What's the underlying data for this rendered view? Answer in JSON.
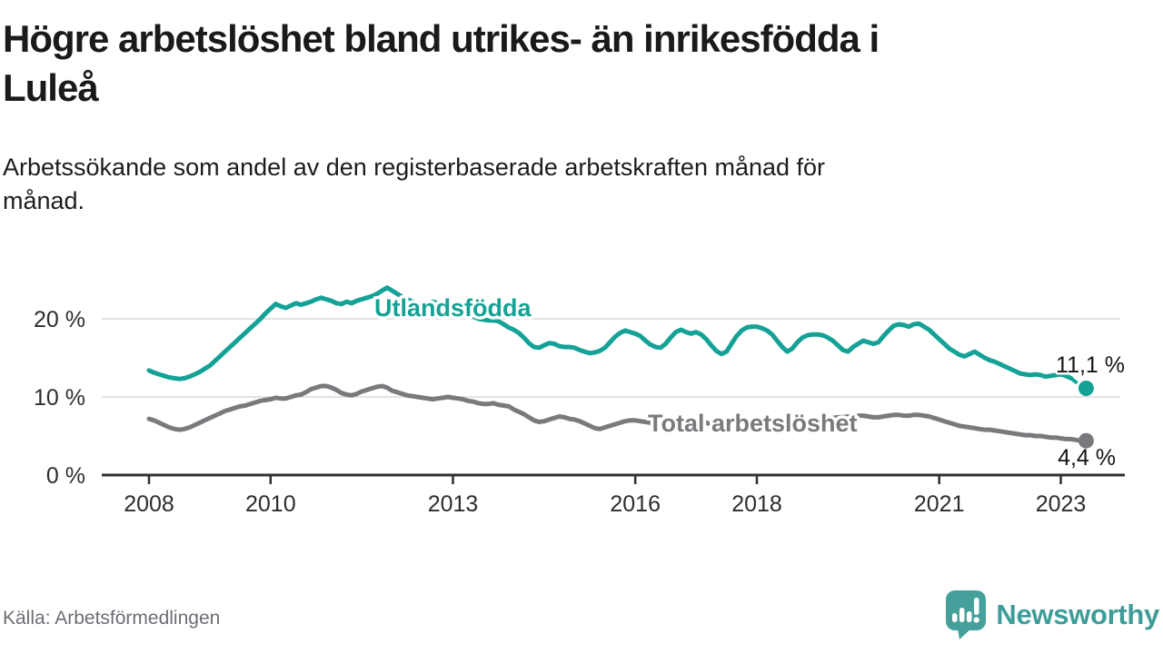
{
  "header": {
    "title": "Högre arbetslöshet bland utrikes- än inrikesfödda i\nLuleå",
    "subtitle": "Arbetssökande som andel av den registerbaserade arbetskraften månad för\nmånad."
  },
  "chart_data": {
    "type": "line",
    "x_start": "2008-01",
    "x_interval": "monthly",
    "xlim": [
      2007.2,
      2024.0
    ],
    "ylim": [
      0,
      26
    ],
    "grid": "horizontal",
    "y_ticks": [
      {
        "value": 20,
        "label": "20 %"
      },
      {
        "value": 10,
        "label": "10 %"
      },
      {
        "value": 0,
        "label": "0 %"
      }
    ],
    "x_ticks": [
      {
        "value": 2008,
        "label": "2008"
      },
      {
        "value": 2010,
        "label": "2010"
      },
      {
        "value": 2013,
        "label": "2013"
      },
      {
        "value": 2016,
        "label": "2016"
      },
      {
        "value": 2018,
        "label": "2018"
      },
      {
        "value": 2021,
        "label": "2021"
      },
      {
        "value": 2023,
        "label": "2023"
      }
    ],
    "series": [
      {
        "name": "Utlandsfödda",
        "color": "#14a296",
        "end_label": "11,1 %",
        "end_value": 11.1,
        "dashed_from_index": 182,
        "values": [
          13.4,
          13.1,
          12.9,
          12.7,
          12.5,
          12.4,
          12.3,
          12.4,
          12.6,
          12.9,
          13.2,
          13.6,
          14.0,
          14.6,
          15.2,
          15.8,
          16.4,
          17.0,
          17.6,
          18.2,
          18.8,
          19.4,
          20.0,
          20.7,
          21.3,
          21.9,
          21.6,
          21.4,
          21.7,
          22.0,
          21.8,
          22.0,
          22.2,
          22.5,
          22.7,
          22.5,
          22.3,
          22.0,
          21.9,
          22.2,
          22.0,
          22.3,
          22.5,
          22.7,
          22.9,
          23.2,
          23.6,
          24.0,
          23.6,
          23.2,
          22.8,
          22.5,
          22.2,
          22.0,
          21.9,
          22.0,
          22.2,
          22.0,
          21.9,
          21.8,
          21.8,
          21.4,
          21.0,
          20.6,
          20.3,
          20.0,
          19.9,
          19.8,
          19.8,
          19.7,
          19.3,
          18.9,
          18.6,
          18.2,
          17.6,
          16.9,
          16.4,
          16.3,
          16.6,
          16.9,
          16.8,
          16.5,
          16.4,
          16.4,
          16.3,
          16.0,
          15.8,
          15.6,
          15.7,
          15.9,
          16.3,
          17.0,
          17.7,
          18.2,
          18.5,
          18.3,
          18.1,
          17.8,
          17.2,
          16.7,
          16.4,
          16.3,
          16.8,
          17.6,
          18.3,
          18.6,
          18.3,
          18.1,
          18.3,
          18.0,
          17.4,
          16.6,
          15.9,
          15.5,
          15.8,
          16.8,
          17.8,
          18.5,
          18.9,
          19.0,
          19.0,
          18.8,
          18.5,
          18.0,
          17.2,
          16.4,
          15.8,
          16.2,
          17.0,
          17.6,
          17.9,
          18.0,
          18.0,
          17.9,
          17.6,
          17.2,
          16.6,
          16.0,
          15.8,
          16.4,
          16.8,
          17.2,
          17.0,
          16.8,
          17.0,
          17.8,
          18.5,
          19.1,
          19.3,
          19.2,
          19.0,
          19.3,
          19.4,
          19.0,
          18.6,
          18.0,
          17.4,
          16.8,
          16.2,
          15.8,
          15.4,
          15.2,
          15.5,
          15.8,
          15.4,
          15.0,
          14.7,
          14.5,
          14.2,
          13.9,
          13.6,
          13.3,
          13.0,
          12.9,
          12.8,
          12.9,
          12.8,
          12.6,
          12.7,
          12.8,
          12.9,
          12.7,
          12.4,
          11.9,
          11.4,
          11.1
        ]
      },
      {
        "name": "Total arbetslöshet",
        "color": "#7a7a7e",
        "end_label": "4,4 %",
        "end_value": 4.4,
        "values": [
          7.2,
          7.0,
          6.7,
          6.4,
          6.1,
          5.9,
          5.8,
          5.9,
          6.1,
          6.4,
          6.7,
          7.0,
          7.3,
          7.6,
          7.9,
          8.2,
          8.4,
          8.6,
          8.8,
          8.9,
          9.1,
          9.3,
          9.5,
          9.6,
          9.7,
          9.9,
          9.8,
          9.8,
          10.0,
          10.2,
          10.3,
          10.6,
          11.0,
          11.2,
          11.4,
          11.4,
          11.2,
          10.9,
          10.5,
          10.3,
          10.2,
          10.4,
          10.7,
          10.9,
          11.1,
          11.3,
          11.4,
          11.2,
          10.8,
          10.6,
          10.4,
          10.2,
          10.1,
          10.0,
          9.9,
          9.8,
          9.7,
          9.8,
          9.9,
          10.0,
          9.9,
          9.8,
          9.7,
          9.5,
          9.4,
          9.2,
          9.1,
          9.1,
          9.2,
          9.0,
          8.9,
          8.8,
          8.4,
          8.1,
          7.8,
          7.4,
          7.0,
          6.8,
          6.9,
          7.1,
          7.3,
          7.5,
          7.4,
          7.2,
          7.1,
          6.9,
          6.6,
          6.3,
          6.0,
          5.9,
          6.1,
          6.3,
          6.5,
          6.7,
          6.9,
          7.0,
          7.0,
          6.9,
          6.8,
          6.7,
          6.6,
          6.6,
          6.7,
          6.8,
          6.9,
          7.0,
          7.0,
          6.9,
          6.9,
          6.8,
          6.7,
          6.5,
          6.4,
          6.3,
          6.4,
          6.5,
          6.6,
          6.7,
          6.8,
          6.8,
          6.8,
          6.7,
          6.7,
          6.6,
          6.5,
          6.5,
          6.6,
          6.7,
          6.8,
          6.9,
          6.9,
          7.0,
          7.0,
          7.1,
          7.2,
          7.3,
          7.4,
          7.4,
          7.5,
          7.5,
          7.6,
          7.6,
          7.5,
          7.4,
          7.4,
          7.5,
          7.6,
          7.7,
          7.7,
          7.6,
          7.6,
          7.7,
          7.7,
          7.6,
          7.5,
          7.3,
          7.1,
          6.9,
          6.7,
          6.5,
          6.3,
          6.2,
          6.1,
          6.0,
          5.9,
          5.8,
          5.8,
          5.7,
          5.6,
          5.5,
          5.4,
          5.3,
          5.2,
          5.1,
          5.1,
          5.0,
          5.0,
          4.9,
          4.8,
          4.8,
          4.7,
          4.6,
          4.6,
          4.5,
          4.4,
          4.4
        ]
      }
    ]
  },
  "footer": {
    "source": "Källa: Arbetsförmedlingen",
    "brand": "Newsworthy",
    "brand_color": "#3e9d98"
  }
}
